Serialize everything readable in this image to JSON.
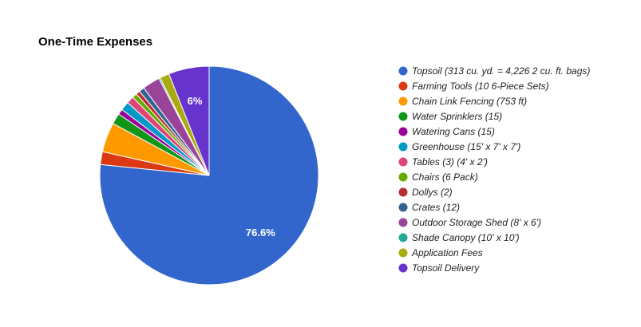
{
  "chart_data": {
    "type": "pie",
    "title": "One-Time Expenses",
    "legend_position": "right",
    "slice_start": "top, clockwise",
    "series": [
      {
        "name": "Topsoil (313 cu. yd. = 4,226 2 cu. ft. bags)",
        "value": 76.6,
        "color": "#3366cc",
        "data_label": "76.6%"
      },
      {
        "name": "Farming Tools (10 6-Piece Sets)",
        "value": 1.9,
        "color": "#dc3912",
        "data_label": ""
      },
      {
        "name": "Chain Link Fencing (753 ft)",
        "value": 4.4,
        "color": "#ff9900",
        "data_label": ""
      },
      {
        "name": "Water Sprinklers (15)",
        "value": 1.6,
        "color": "#109618",
        "data_label": ""
      },
      {
        "name": "Watering Cans (15)",
        "value": 0.8,
        "color": "#990099",
        "data_label": ""
      },
      {
        "name": "Greenhouse (15' x 7' x 7')",
        "value": 1.3,
        "color": "#0099c6",
        "data_label": ""
      },
      {
        "name": "Tables (3) (4' x 2')",
        "value": 1.1,
        "color": "#dd4477",
        "data_label": ""
      },
      {
        "name": "Chairs (6 Pack)",
        "value": 0.7,
        "color": "#66aa00",
        "data_label": ""
      },
      {
        "name": "Dollys (2)",
        "value": 0.6,
        "color": "#b82e2e",
        "data_label": ""
      },
      {
        "name": "Crates (12)",
        "value": 0.8,
        "color": "#316395",
        "data_label": ""
      },
      {
        "name": "Outdoor Storage Shed (8' x 6')",
        "value": 2.6,
        "color": "#994499",
        "data_label": ""
      },
      {
        "name": "Shade Canopy (10' x 10')",
        "value": 0.2,
        "color": "#22aa99",
        "data_label": ""
      },
      {
        "name": "Application Fees",
        "value": 1.4,
        "color": "#aaaa11",
        "data_label": ""
      },
      {
        "name": "Topsoil Delivery",
        "value": 6.0,
        "color": "#6633cc",
        "data_label": "6%"
      }
    ]
  }
}
